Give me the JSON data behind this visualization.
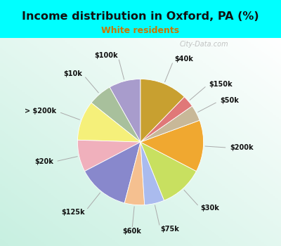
{
  "title": "Income distribution in Oxford, PA (%)",
  "subtitle": "White residents",
  "title_color": "#111111",
  "subtitle_color": "#cc7700",
  "bg_cyan": "#00ffff",
  "watermark": "City-Data.com",
  "labels": [
    "$100k",
    "$10k",
    "> $200k",
    "$20k",
    "$125k",
    "$60k",
    "$75k",
    "$30k",
    "$200k",
    "$50k",
    "$150k",
    "$40k"
  ],
  "values": [
    8,
    6,
    10,
    8,
    13,
    5,
    5,
    11,
    13,
    4,
    3,
    12
  ],
  "colors": [
    "#a89ccc",
    "#a8c09c",
    "#f5f07a",
    "#f0b0bc",
    "#8888cc",
    "#f5c090",
    "#aabbee",
    "#c8e060",
    "#f0a830",
    "#c8b898",
    "#e07878",
    "#c8a030"
  ],
  "startangle": 90,
  "figsize": [
    4.0,
    3.5
  ],
  "dpi": 100
}
